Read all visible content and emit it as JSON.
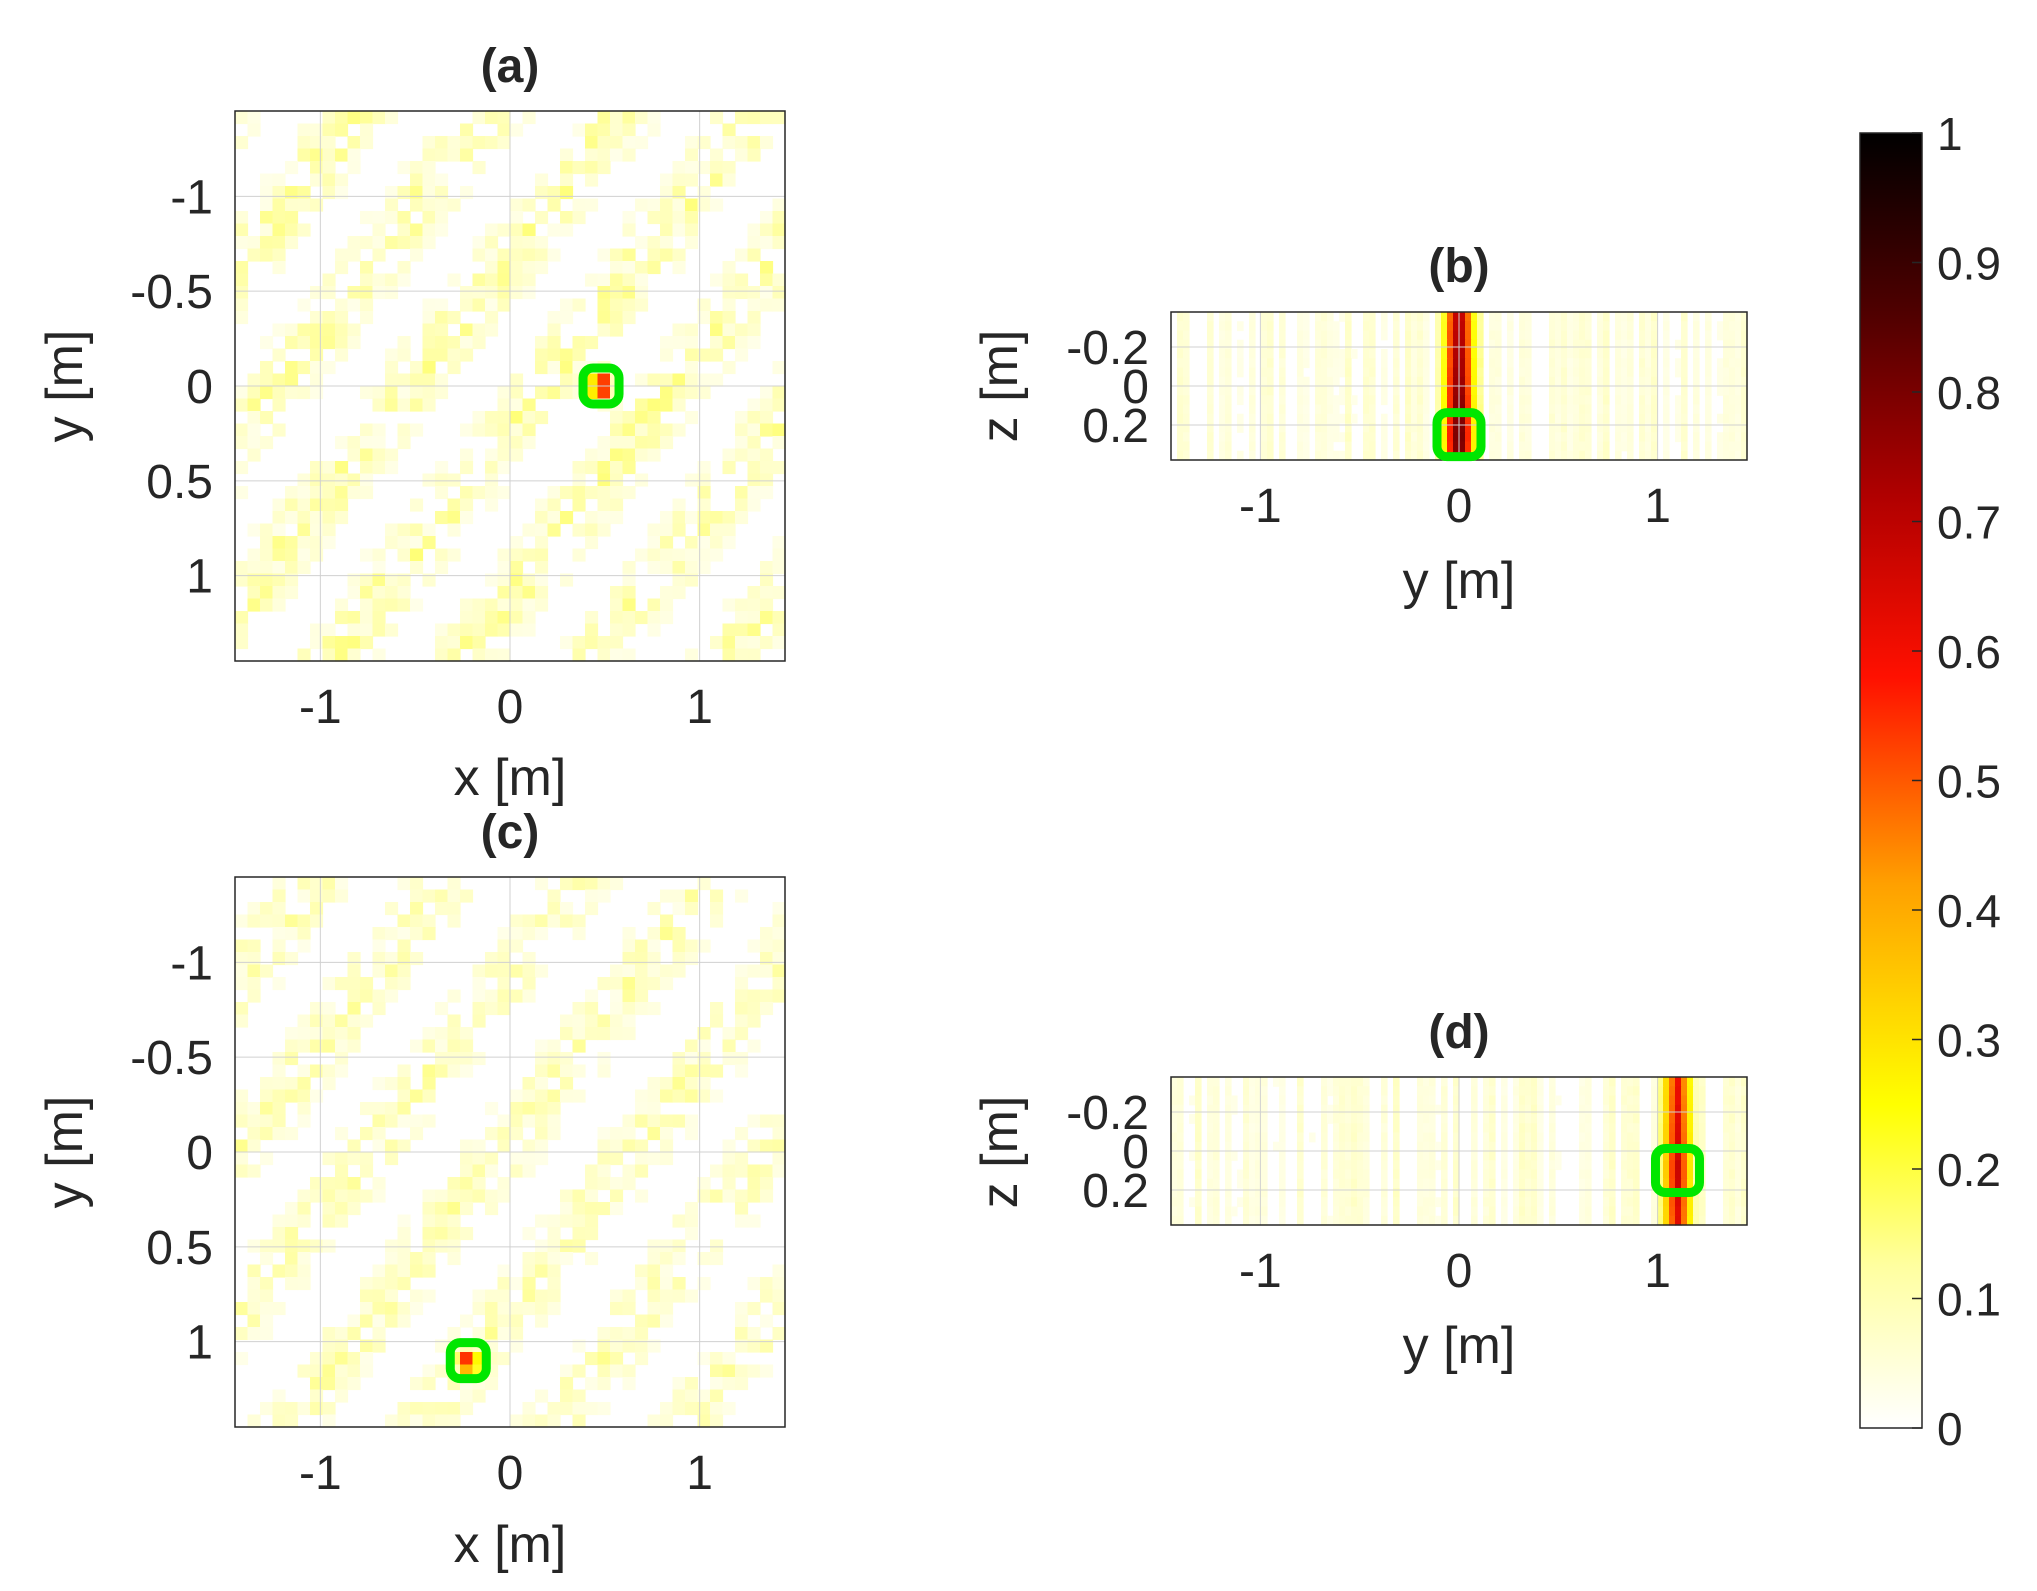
{
  "chart_data": [
    {
      "type": "heatmap",
      "title": "(a)",
      "xlabel": "x [m]",
      "ylabel": "y [m]",
      "xlim": [
        -1.45,
        1.45
      ],
      "ylim": [
        -1.45,
        1.45
      ],
      "y_reversed": true,
      "xticks": [
        -1,
        0,
        1
      ],
      "xtick_labels": [
        "-1",
        "0",
        "1"
      ],
      "yticks": [
        -1,
        -0.5,
        0,
        0.5,
        1
      ],
      "ytick_labels": [
        "-1",
        "-0.5",
        "0",
        "0.5",
        "1"
      ],
      "grid": true,
      "marker": {
        "shape": "square",
        "color": "#00e600",
        "x": 0.48,
        "y": 0.0
      },
      "peak": {
        "x": 0.48,
        "y": 0.0,
        "value": 0.75
      },
      "background_level": 0.08
    },
    {
      "type": "heatmap",
      "title": "(b)",
      "xlabel": "y [m]",
      "ylabel": "z [m]",
      "xlim": [
        -1.45,
        1.45
      ],
      "ylim": [
        -0.38,
        0.38
      ],
      "y_reversed": true,
      "xticks": [
        -1,
        0,
        1
      ],
      "xtick_labels": [
        "-1",
        "0",
        "1"
      ],
      "yticks": [
        -0.2,
        0,
        0.2
      ],
      "ytick_labels": [
        "-0.2",
        "0",
        "0.2"
      ],
      "grid": true,
      "marker": {
        "shape": "square",
        "color": "#00e600",
        "x": 0.0,
        "y": 0.25
      },
      "peak": {
        "x": 0.0,
        "y": 0.25,
        "value": 0.8
      },
      "background_level": 0.06
    },
    {
      "type": "heatmap",
      "title": "(c)",
      "xlabel": "x [m]",
      "ylabel": "y [m]",
      "xlim": [
        -1.45,
        1.45
      ],
      "ylim": [
        -1.45,
        1.45
      ],
      "y_reversed": true,
      "xticks": [
        -1,
        0,
        1
      ],
      "xtick_labels": [
        "-1",
        "0",
        "1"
      ],
      "yticks": [
        -1,
        -0.5,
        0,
        0.5,
        1
      ],
      "ytick_labels": [
        "-1",
        "-0.5",
        "0",
        "0.5",
        "1"
      ],
      "grid": true,
      "marker": {
        "shape": "square",
        "color": "#00e600",
        "x": -0.22,
        "y": 1.1
      },
      "peak": {
        "x": -0.22,
        "y": 1.1,
        "value": 0.55
      },
      "background_level": 0.07
    },
    {
      "type": "heatmap",
      "title": "(d)",
      "xlabel": "y [m]",
      "ylabel": "z [m]",
      "xlim": [
        -1.45,
        1.45
      ],
      "ylim": [
        -0.38,
        0.38
      ],
      "y_reversed": true,
      "xticks": [
        -1,
        0,
        1
      ],
      "xtick_labels": [
        "-1",
        "0",
        "1"
      ],
      "yticks": [
        -0.2,
        0,
        0.2
      ],
      "ytick_labels": [
        "-0.2",
        "0",
        "0.2"
      ],
      "grid": true,
      "marker": {
        "shape": "square",
        "color": "#00e600",
        "x": 1.1,
        "y": 0.1
      },
      "peak": {
        "x": 1.1,
        "y": 0.1,
        "value": 0.6
      },
      "background_level": 0.06
    }
  ],
  "colorbar": {
    "colormap": "hot (reversed)",
    "range": [
      0,
      1
    ],
    "ticks": [
      0,
      0.1,
      0.2,
      0.3,
      0.4,
      0.5,
      0.6,
      0.7,
      0.8,
      0.9,
      1
    ],
    "tick_labels": [
      "0",
      "0.1",
      "0.2",
      "0.3",
      "0.4",
      "0.5",
      "0.6",
      "0.7",
      "0.8",
      "0.9",
      "1"
    ],
    "colors": [
      "#ffffff",
      "#ffff80",
      "#ffff00",
      "#ff8000",
      "#ff0000",
      "#800000",
      "#000000"
    ]
  }
}
